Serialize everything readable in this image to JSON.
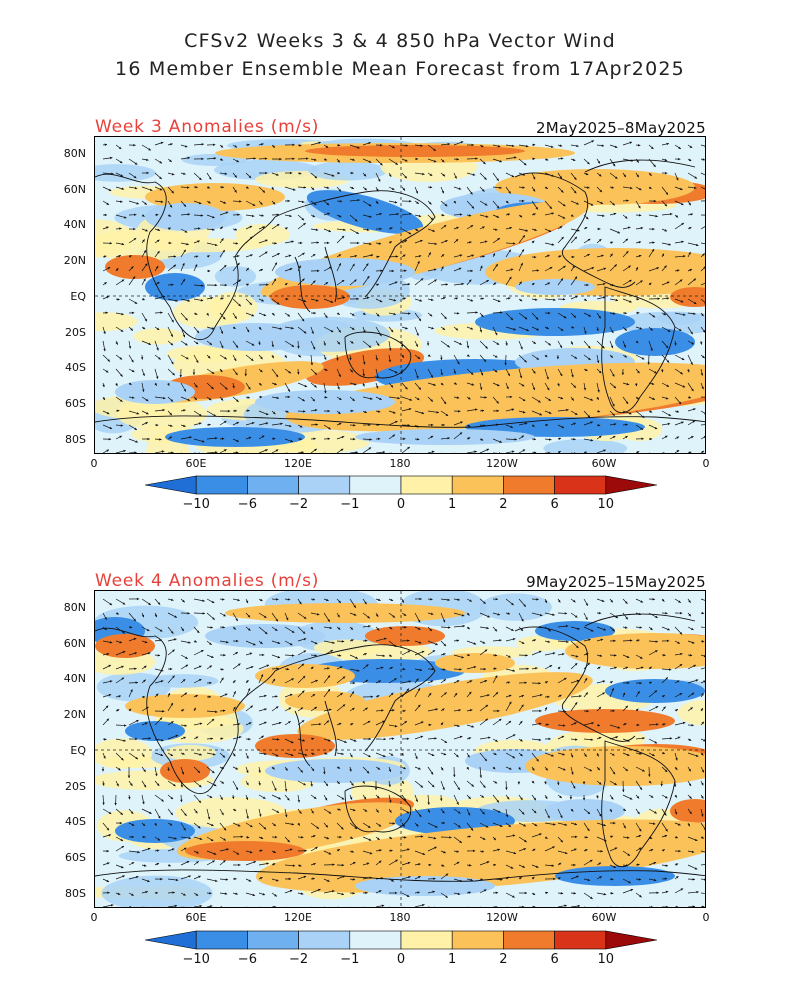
{
  "title": {
    "line1": "CFSv2 Weeks 3 & 4 850 hPa Vector Wind",
    "line2": "16 Member Ensemble Mean Forecast from 17Apr2025"
  },
  "panels": [
    {
      "id": "week3",
      "label": "Week 3 Anomalies (m/s)",
      "dates": "2May2025–8May2025"
    },
    {
      "id": "week4",
      "label": "Week 4 Anomalies (m/s)",
      "dates": "9May2025–15May2025"
    }
  ],
  "lat_labels": [
    "80N",
    "60N",
    "40N",
    "20N",
    "EQ",
    "20S",
    "40S",
    "60S",
    "80S"
  ],
  "lon_labels": [
    "0",
    "60E",
    "120E",
    "180",
    "120W",
    "60W",
    "0"
  ],
  "colorbar": {
    "labels": [
      "−10",
      "−6",
      "−2",
      "−1",
      "0",
      "1",
      "2",
      "6",
      "10"
    ],
    "colors": [
      "#1f6fd6",
      "#3b8ee6",
      "#6fb0f0",
      "#a9d2f6",
      "#dff3fb",
      "#fff2a8",
      "#fbc25a",
      "#f07b2c",
      "#d9341a",
      "#9c0a0a"
    ]
  },
  "legend_colors": {
    "strong_negative": "#3b8ee6",
    "negative": "#a9d2f6",
    "near_zero": "#dff3fb",
    "positive": "#fff2a8",
    "moderate_positive": "#fbc25a",
    "strong_positive": "#f07b2c"
  }
}
